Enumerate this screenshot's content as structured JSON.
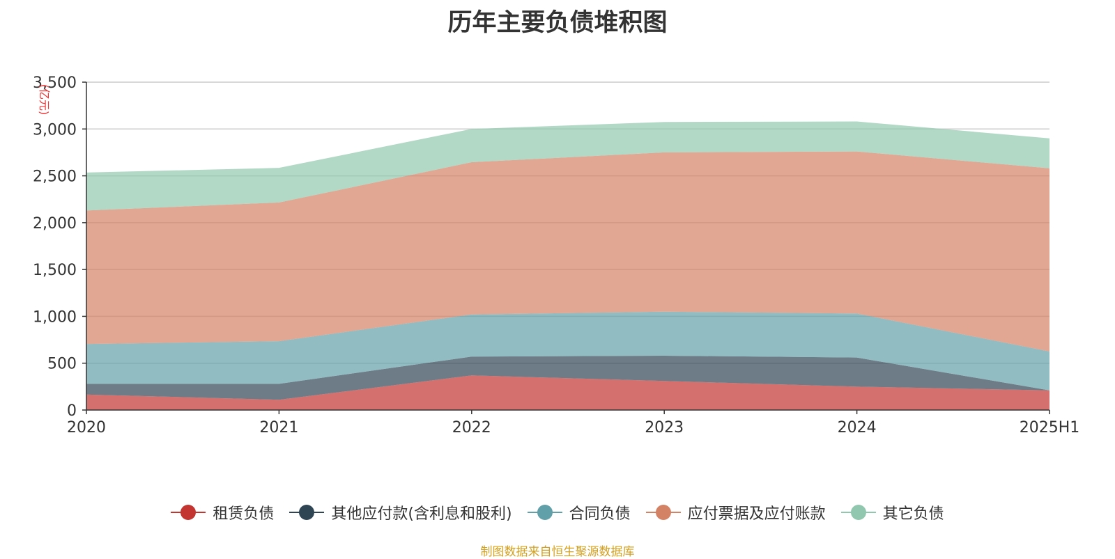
{
  "chart_data": {
    "type": "area",
    "stacked": true,
    "title": "历年主要负债堆积图",
    "ylabel": "(亿元)",
    "categories": [
      "2020",
      "2021",
      "2022",
      "2023",
      "2024",
      "2025H1"
    ],
    "ylim": [
      0,
      3500
    ],
    "yticks": [
      0,
      500,
      1000,
      1500,
      2000,
      2500,
      3000,
      3500
    ],
    "ytick_labels": [
      "0",
      "500",
      "1,000",
      "1,500",
      "2,000",
      "2,500",
      "3,000",
      "3,500"
    ],
    "grid": true,
    "legend_position": "bottom",
    "series": [
      {
        "name": "租赁负债",
        "color": "#c23531",
        "values": [
          165,
          110,
          370,
          310,
          250,
          210
        ]
      },
      {
        "name": "其他应付款(含利息和股利)",
        "color": "#2f4554",
        "values": [
          115,
          170,
          200,
          270,
          310,
          0
        ]
      },
      {
        "name": "合同负债",
        "color": "#61a0a8",
        "values": [
          425,
          455,
          450,
          470,
          470,
          415
        ]
      },
      {
        "name": "应付票据及应付账款",
        "color": "#d48265",
        "values": [
          1425,
          1480,
          1625,
          1700,
          1730,
          1955
        ]
      },
      {
        "name": "其它负债",
        "color": "#91c7ae",
        "values": [
          405,
          370,
          355,
          325,
          320,
          320
        ]
      }
    ]
  },
  "source_note": "制图数据来自恒生聚源数据库"
}
